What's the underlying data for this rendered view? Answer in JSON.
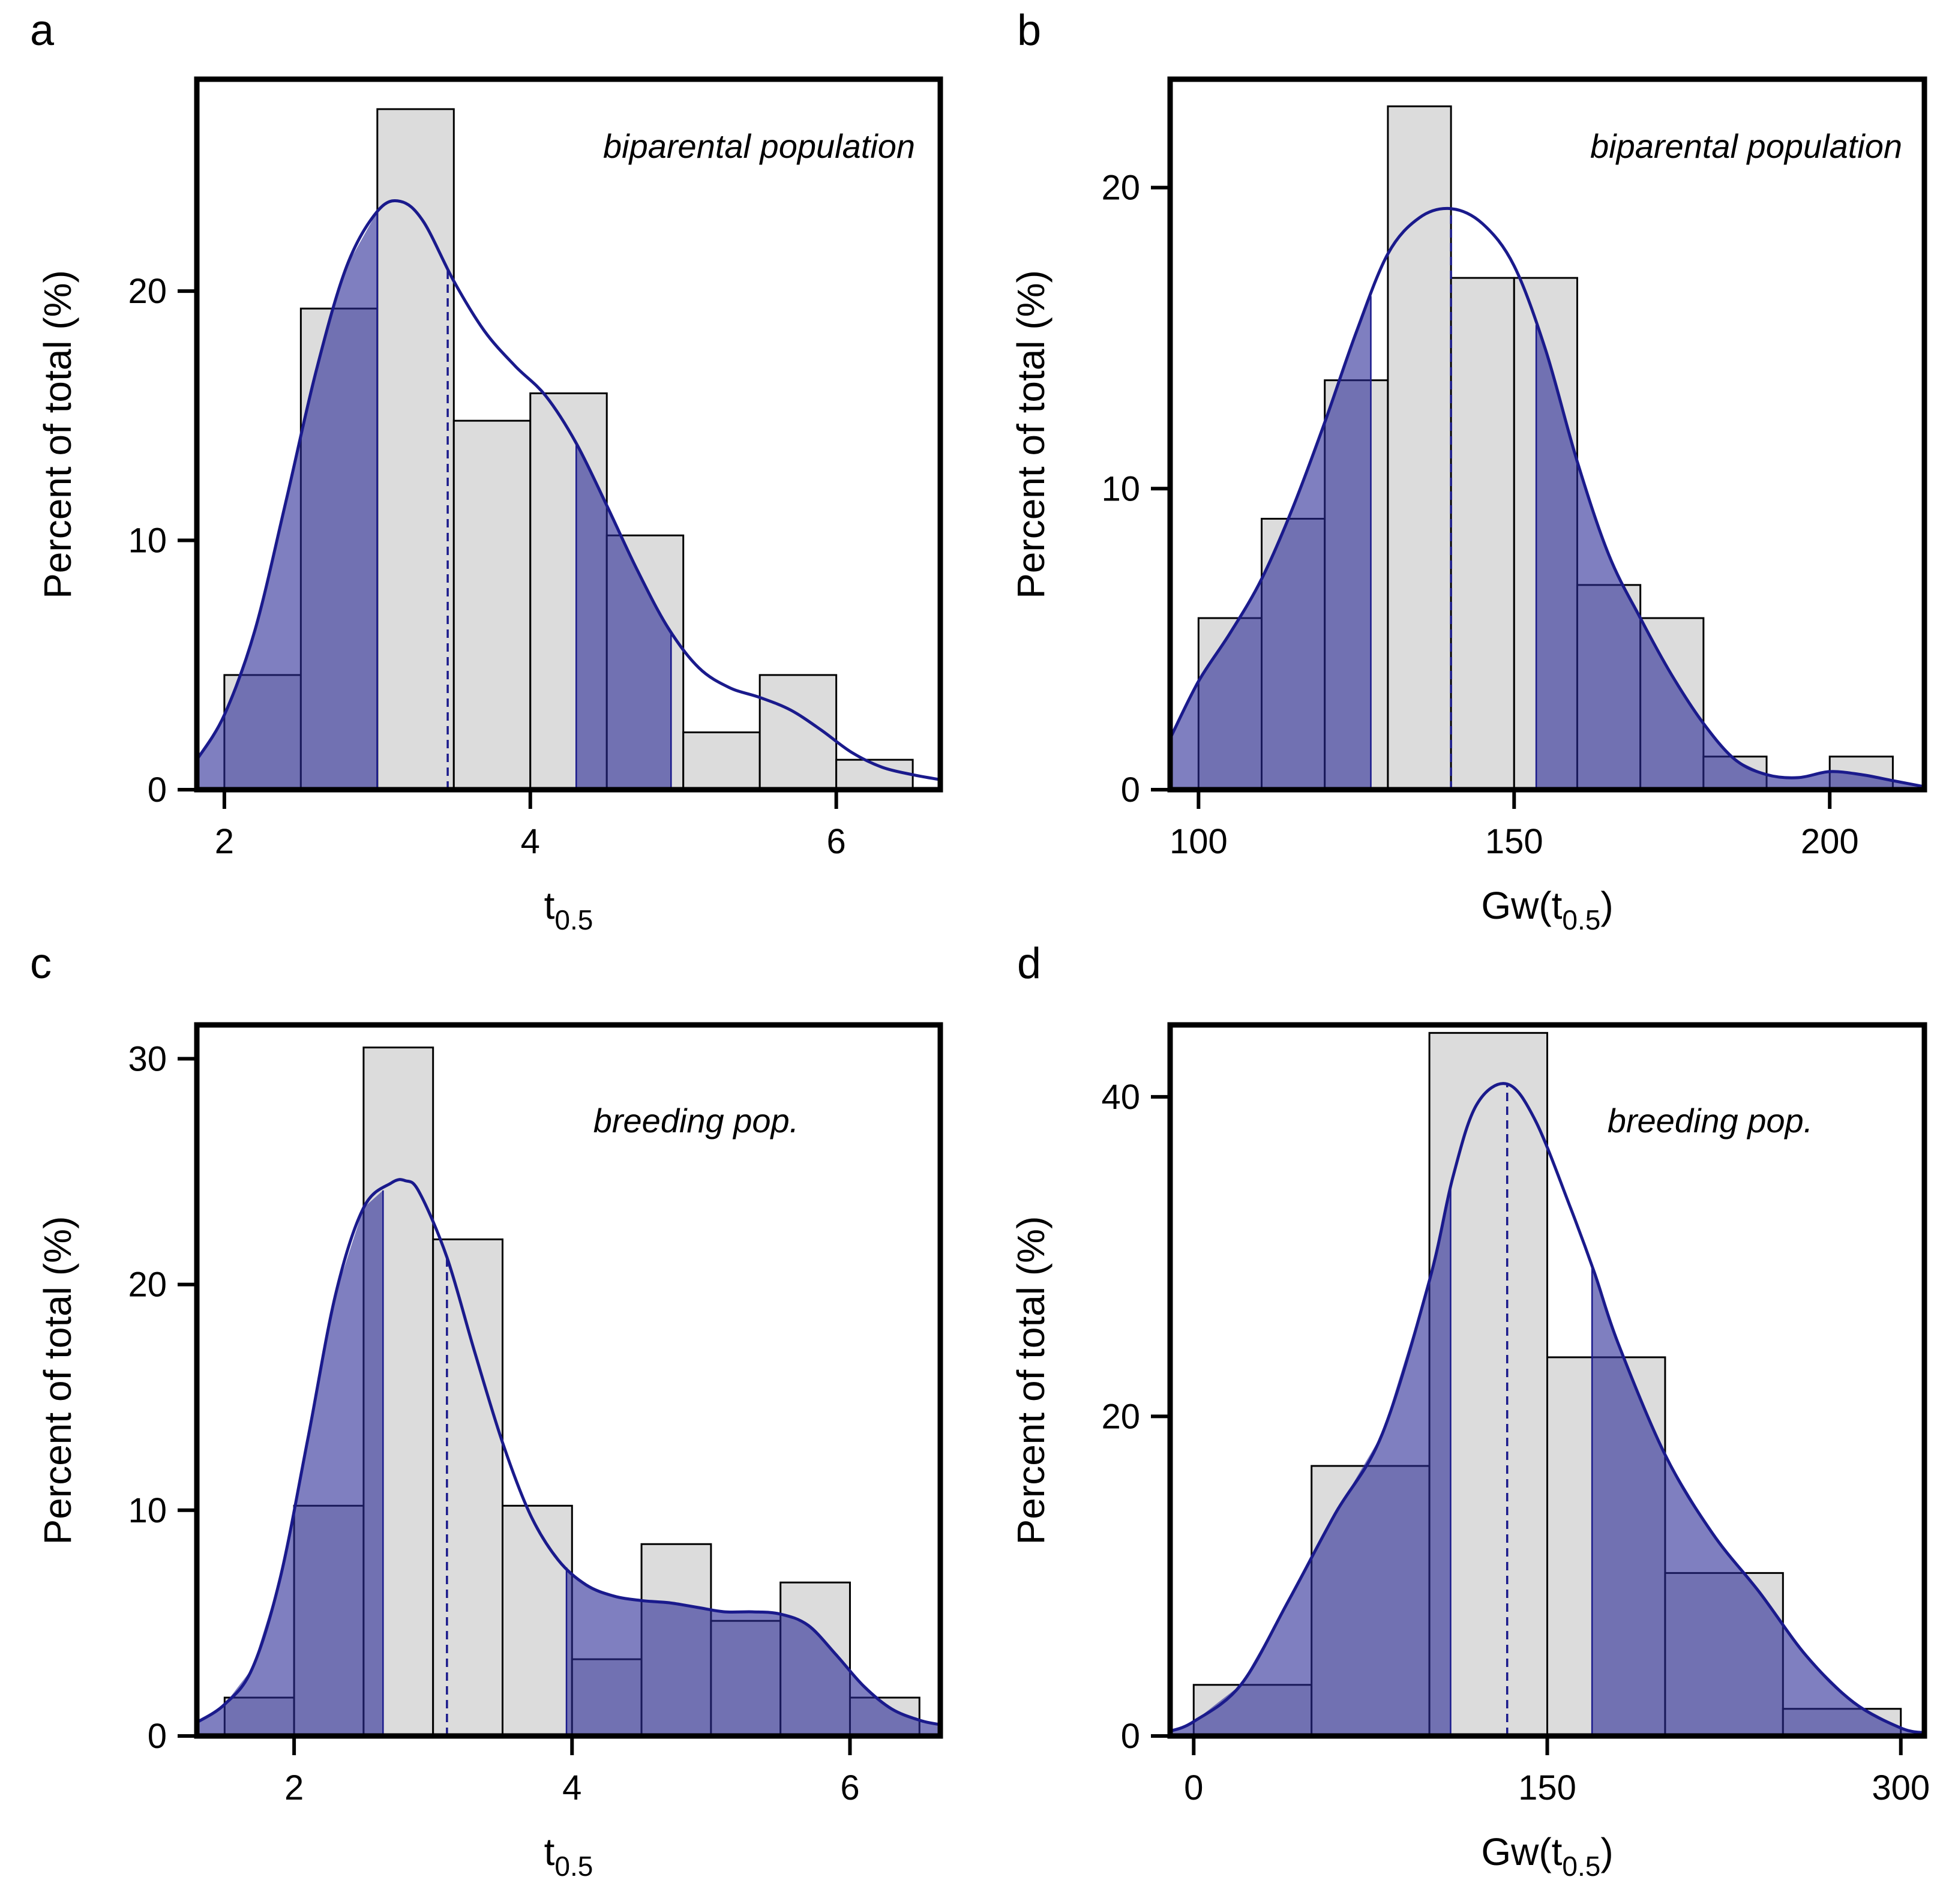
{
  "figure": {
    "panels": [
      {
        "letter": "a",
        "annotation": "biparental population",
        "xlabel_main": "t",
        "xlabel_sub": "0.5",
        "xlabel_close": "",
        "ylabel": "Percent of total  (%)"
      },
      {
        "letter": "b",
        "annotation": "biparental population",
        "xlabel_main": "Gw",
        "xlabel_sub": "0.5",
        "xlabel_open": "(t",
        "xlabel_close": ")",
        "ylabel": "Percent of total  (%)"
      },
      {
        "letter": "c",
        "annotation": "breeding pop.",
        "xlabel_main": "t",
        "xlabel_sub": "0.5",
        "xlabel_close": "",
        "ylabel": "Percent of total  (%)"
      },
      {
        "letter": "d",
        "annotation": "breeding pop.",
        "xlabel_main": "Gw",
        "xlabel_sub": "0.5",
        "xlabel_open": "(t",
        "xlabel_close": ")",
        "ylabel": "Percent of total  (%)"
      }
    ]
  },
  "colors": {
    "bar_fill": "#dcdcdc",
    "bar_stroke": "#000000",
    "density_line": "#1a1a8c",
    "tail_fill": "#2a2a96",
    "tail_opacity": 0.6,
    "frame": "#000000"
  },
  "chart_data": [
    {
      "type": "bar",
      "panel": "a",
      "title": "biparental population",
      "xlabel": "t0.5",
      "ylabel": "Percent of total  (%)",
      "xlim": [
        1.82,
        6.68
      ],
      "ylim": [
        0,
        28.5
      ],
      "xticks": [
        2,
        4,
        6
      ],
      "yticks": [
        0,
        10,
        20
      ],
      "bin_edges": [
        2.0,
        2.5,
        3.0,
        3.5,
        4.0,
        4.5,
        5.0,
        5.5,
        6.0,
        6.5
      ],
      "values": [
        4.6,
        19.3,
        27.3,
        14.8,
        15.9,
        10.2,
        2.3,
        4.6,
        1.2
      ],
      "density": {
        "x": [
          1.82,
          2.0,
          2.2,
          2.4,
          2.6,
          2.8,
          3.0,
          3.15,
          3.3,
          3.5,
          3.7,
          3.9,
          4.1,
          4.3,
          4.5,
          4.7,
          4.9,
          5.1,
          5.3,
          5.5,
          5.7,
          5.9,
          6.1,
          6.3,
          6.5,
          6.68
        ],
        "y": [
          1.2,
          3.0,
          6.4,
          11.5,
          16.8,
          21.0,
          23.2,
          23.6,
          22.8,
          20.4,
          18.4,
          17.0,
          15.8,
          13.9,
          11.4,
          8.8,
          6.5,
          4.9,
          4.1,
          3.7,
          3.2,
          2.4,
          1.5,
          0.9,
          0.6,
          0.4
        ]
      },
      "tails": [
        [
          1.82,
          3.0
        ],
        [
          4.3,
          4.92
        ]
      ],
      "median": 3.46
    },
    {
      "type": "bar",
      "panel": "b",
      "title": "biparental population",
      "xlabel": "Gw(t0.5)",
      "ylabel": "Percent of total  (%)",
      "xlim": [
        95.5,
        215.0
      ],
      "ylim": [
        0,
        23.6
      ],
      "xticks": [
        100,
        150,
        200
      ],
      "yticks": [
        0,
        10,
        20
      ],
      "bin_edges": [
        100,
        110,
        120,
        130,
        140,
        150,
        160,
        170,
        180,
        190,
        200,
        210
      ],
      "values": [
        5.7,
        9.0,
        13.6,
        22.7,
        17.0,
        17.0,
        6.8,
        5.7,
        1.1,
        0.0,
        1.1
      ],
      "density": {
        "x": [
          95.5,
          100,
          105,
          110,
          115,
          120,
          125,
          130,
          135,
          140,
          145,
          150,
          155,
          160,
          165,
          170,
          175,
          180,
          185,
          190,
          195,
          200,
          205,
          210,
          215
        ],
        "y": [
          1.7,
          3.6,
          5.2,
          7.0,
          9.4,
          12.2,
          15.2,
          17.8,
          19.0,
          19.3,
          18.8,
          17.4,
          14.6,
          10.9,
          7.8,
          5.7,
          3.8,
          2.2,
          1.0,
          0.5,
          0.4,
          0.6,
          0.5,
          0.3,
          0.1
        ]
      },
      "tails": [
        [
          95.5,
          127.3
        ],
        [
          153.5,
          215.0
        ]
      ],
      "median": 140.0
    },
    {
      "type": "bar",
      "panel": "c",
      "title": "breeding pop.",
      "xlabel": "t0.5",
      "ylabel": "Percent of total  (%)",
      "xlim": [
        1.3,
        6.65
      ],
      "ylim": [
        0,
        31.5
      ],
      "xticks": [
        2,
        4,
        6
      ],
      "yticks": [
        0,
        10,
        20,
        30
      ],
      "bin_edges": [
        1.5,
        2.0,
        2.5,
        3.0,
        3.5,
        4.0,
        4.5,
        5.0,
        5.5,
        6.0,
        6.5
      ],
      "values": [
        1.7,
        10.2,
        30.5,
        22.0,
        10.2,
        3.4,
        8.5,
        5.1,
        6.8,
        1.7
      ],
      "density": {
        "x": [
          1.3,
          1.5,
          1.7,
          1.9,
          2.1,
          2.3,
          2.5,
          2.7,
          2.8,
          2.9,
          3.1,
          3.3,
          3.5,
          3.7,
          3.9,
          4.1,
          4.3,
          4.5,
          4.7,
          4.9,
          5.1,
          5.3,
          5.5,
          5.7,
          5.9,
          6.1,
          6.3,
          6.5,
          6.65
        ],
        "y": [
          0.6,
          1.4,
          3.0,
          7.0,
          13.2,
          19.6,
          23.4,
          24.5,
          24.6,
          24.1,
          21.2,
          17.0,
          13.0,
          9.8,
          7.8,
          6.7,
          6.2,
          6.0,
          5.9,
          5.7,
          5.5,
          5.5,
          5.4,
          4.9,
          3.6,
          2.2,
          1.2,
          0.7,
          0.5
        ]
      },
      "tails": [
        [
          1.3,
          2.64
        ],
        [
          3.96,
          6.65
        ]
      ],
      "median": 3.1
    },
    {
      "type": "bar",
      "panel": "d",
      "title": "breeding pop.",
      "xlabel": "Gw(t0.5)",
      "ylabel": "Percent of total  (%)",
      "xlim": [
        -10,
        310
      ],
      "ylim": [
        0,
        44.5
      ],
      "xticks": [
        0,
        150,
        300
      ],
      "yticks": [
        0,
        20,
        40
      ],
      "bin_edges": [
        0,
        50,
        100,
        150,
        200,
        250,
        300
      ],
      "values": [
        3.2,
        16.9,
        44.0,
        23.7,
        10.2,
        1.7
      ],
      "density": {
        "x": [
          -10,
          0,
          20,
          40,
          60,
          80,
          100,
          110,
          120,
          133,
          145,
          160,
          170,
          180,
          200,
          220,
          240,
          260,
          280,
          300,
          310
        ],
        "y": [
          0.3,
          0.9,
          3.2,
          8.4,
          13.9,
          18.9,
          28.5,
          35.0,
          39.5,
          40.8,
          38.5,
          33.0,
          29.0,
          24.6,
          17.6,
          12.7,
          9.0,
          5.0,
          2.1,
          0.5,
          0.2
        ]
      },
      "tails": [
        [
          -10,
          109
        ],
        [
          169,
          310
        ]
      ],
      "median": 133
    }
  ]
}
